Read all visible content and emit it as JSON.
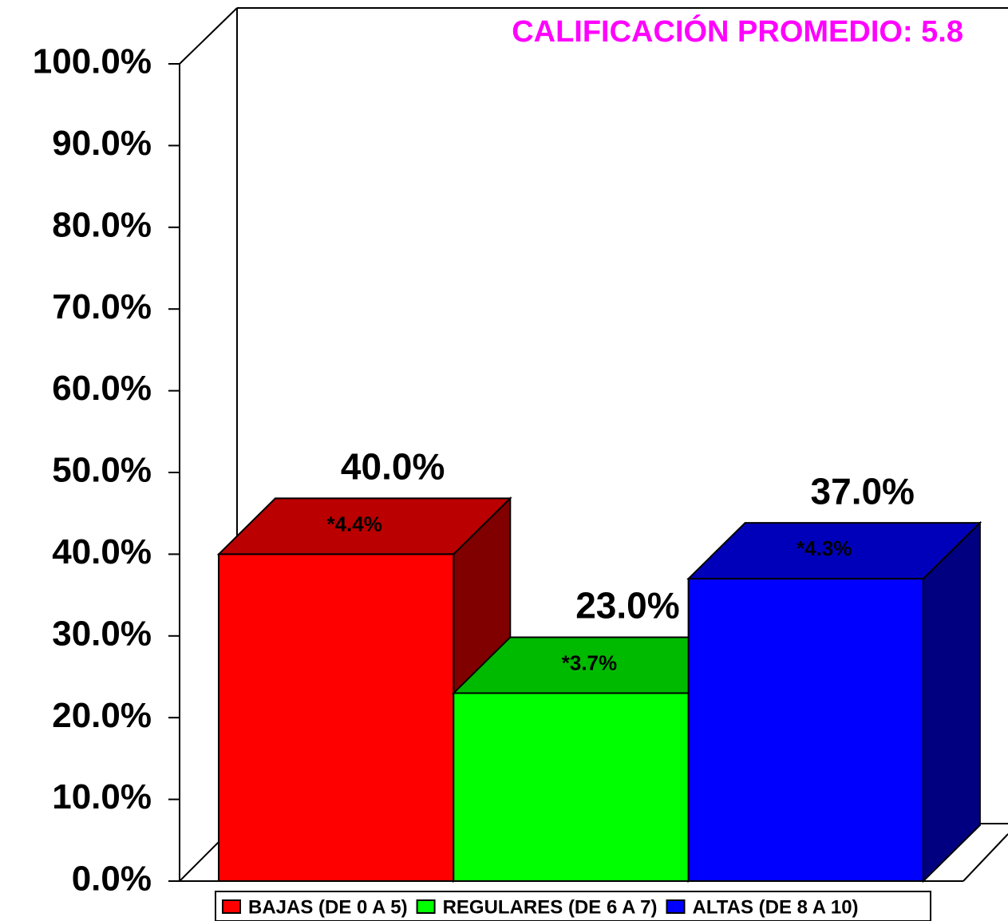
{
  "chart_data": {
    "type": "bar3d",
    "annotation": "CALIFICACIÓN PROMEDIO: 5.8",
    "categories": [
      "BAJAS (DE 0 A 5)",
      "REGULARES (DE 6 A 7)",
      "ALTAS (DE 8 A 10)"
    ],
    "values": [
      40.0,
      23.0,
      37.0
    ],
    "value_labels": [
      "40.0%",
      "23.0%",
      "37.0%"
    ],
    "errors": [
      4.4,
      3.7,
      4.3
    ],
    "error_labels": [
      "*4.4%",
      "*3.7%",
      "*4.3%"
    ],
    "colors": [
      "#ff0000",
      "#00ff00",
      "#0000ff"
    ],
    "ylim": [
      0,
      100
    ],
    "yticks": [
      {
        "value": 0,
        "label": "0.0%"
      },
      {
        "value": 10,
        "label": "10.0%"
      },
      {
        "value": 20,
        "label": "20.0%"
      },
      {
        "value": 30,
        "label": "30.0%"
      },
      {
        "value": 40,
        "label": "40.0%"
      },
      {
        "value": 50,
        "label": "50.0%"
      },
      {
        "value": 60,
        "label": "60.0%"
      },
      {
        "value": 70,
        "label": "70.0%"
      },
      {
        "value": 80,
        "label": "80.0%"
      },
      {
        "value": 90,
        "label": "90.0%"
      },
      {
        "value": 100,
        "label": "100.0%"
      }
    ],
    "legend": "bottom"
  }
}
